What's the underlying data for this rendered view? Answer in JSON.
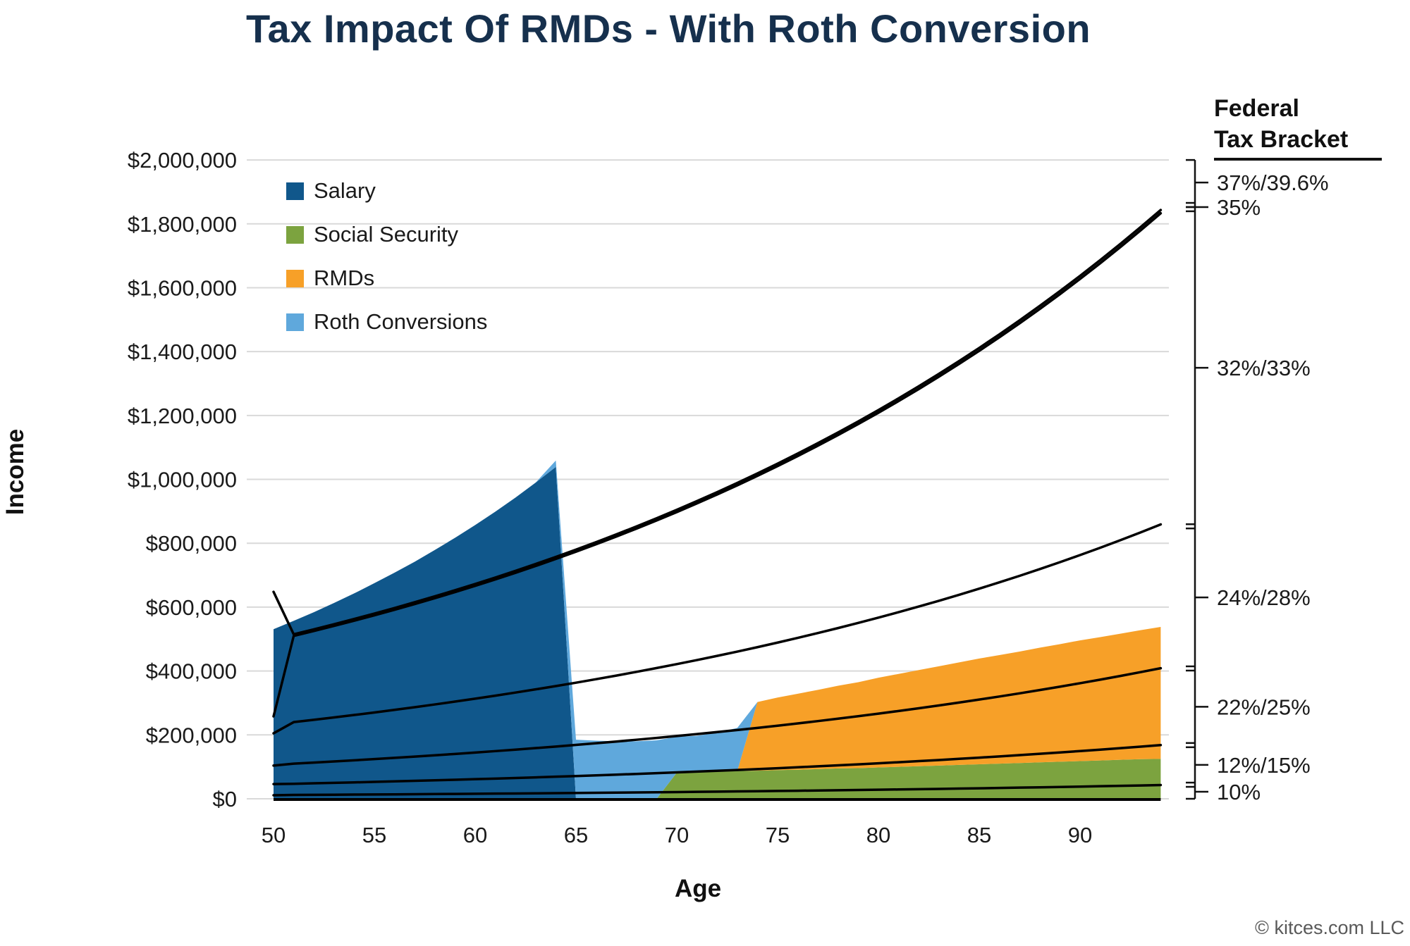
{
  "title": "Tax Impact Of RMDs - With Roth Conversion",
  "y_axis": {
    "label": "Income",
    "ticks": [
      "$0",
      "$200,000",
      "$400,000",
      "$600,000",
      "$800,000",
      "$1,000,000",
      "$1,200,000",
      "$1,400,000",
      "$1,600,000",
      "$1,800,000",
      "$2,000,000"
    ]
  },
  "x_axis": {
    "label": "Age",
    "ticks": [
      50,
      55,
      60,
      65,
      70,
      75,
      80,
      85,
      90
    ]
  },
  "legend": [
    {
      "label": "Salary",
      "color": "#10578B"
    },
    {
      "label": "Social Security",
      "color": "#7CA33F"
    },
    {
      "label": "RMDs",
      "color": "#F7A028"
    },
    {
      "label": "Roth Conversions",
      "color": "#5FA8DC"
    }
  ],
  "right_axis": {
    "header_line1": "Federal",
    "header_line2": "Tax Bracket",
    "labels": [
      "37%/39.6%",
      "35%",
      "32%/33%",
      "24%/28%",
      "22%/25%",
      "12%/15%",
      "10%"
    ],
    "bracket_boundaries_k": [
      2000,
      1859,
      1846,
      853,
      408,
      168,
      44,
      0
    ]
  },
  "copyright": "© kitces.com LLC",
  "chart_data": {
    "type": "area",
    "stacked": true,
    "title": "Tax Impact Of RMDs - With Roth Conversion",
    "xlabel": "Age",
    "ylabel": "Income",
    "x_range": [
      50,
      94.4
    ],
    "ylim_dollars": [
      0,
      2000000
    ],
    "grid": "horizontal",
    "legend_position": "top-left-inside",
    "ages": [
      50,
      51,
      52,
      53,
      54,
      55,
      56,
      57,
      58,
      59,
      60,
      61,
      62,
      63,
      64,
      65,
      66,
      67,
      68,
      69,
      70,
      71,
      72,
      73,
      74,
      75,
      76,
      77,
      78,
      79,
      80,
      81,
      82,
      83,
      84,
      85,
      86,
      87,
      88,
      89,
      90,
      91,
      92,
      93,
      94
    ],
    "series": [
      {
        "name": "Salary",
        "color": "#10578B",
        "values_k": [
          531,
          557,
          584,
          613,
          643,
          675,
          708,
          742,
          779,
          817,
          857,
          899,
          943,
          990,
          1039,
          0,
          0,
          0,
          0,
          0,
          0,
          0,
          0,
          0,
          0,
          0,
          0,
          0,
          0,
          0,
          0,
          0,
          0,
          0,
          0,
          0,
          0,
          0,
          0,
          0,
          0,
          0,
          0,
          0,
          0
        ]
      },
      {
        "name": "Social Security",
        "color": "#7CA33F",
        "values_k": [
          0,
          0,
          0,
          0,
          0,
          0,
          0,
          0,
          0,
          0,
          0,
          0,
          0,
          0,
          0,
          0,
          0,
          0,
          0,
          0,
          82,
          84,
          85,
          87,
          88,
          90,
          91,
          93,
          95,
          96,
          98,
          100,
          102,
          104,
          106,
          108,
          110,
          112,
          114,
          116,
          118,
          120,
          122,
          124,
          125
        ]
      },
      {
        "name": "RMDs",
        "color": "#F7A028",
        "values_k": [
          0,
          0,
          0,
          0,
          0,
          0,
          0,
          0,
          0,
          0,
          0,
          0,
          0,
          0,
          0,
          0,
          0,
          0,
          0,
          0,
          0,
          0,
          0,
          0,
          215,
          227,
          238,
          248,
          259,
          269,
          281,
          291,
          301,
          311,
          321,
          331,
          340,
          349,
          359,
          368,
          378,
          386,
          395,
          404,
          413
        ]
      },
      {
        "name": "Roth Conversions",
        "color": "#5FA8DC",
        "values_k": [
          0,
          0,
          0,
          0,
          0,
          0,
          0,
          0,
          0,
          0,
          0,
          0,
          0,
          0,
          20,
          185,
          182,
          180,
          180,
          183,
          112,
          113,
          122,
          135,
          0,
          0,
          0,
          0,
          0,
          0,
          0,
          0,
          0,
          0,
          0,
          0,
          0,
          0,
          0,
          0,
          0,
          0,
          0,
          0,
          0
        ]
      }
    ],
    "threshold_lines": [
      {
        "name": "35% to 37%/39.6% bracket threshold",
        "points_k": [
          [
            50,
            648
          ],
          [
            51,
            515
          ]
        ],
        "annual_growth": 1.0301
      },
      {
        "name": "32%/33% to 35% bracket threshold",
        "points_k": [
          [
            50,
            258
          ],
          [
            51,
            510
          ]
        ],
        "annual_growth": 1.0302
      },
      {
        "name": "24%/28% to 32%/33% bracket threshold",
        "points_k": [
          [
            50,
            205
          ],
          [
            51,
            240
          ]
        ],
        "annual_growth": 1.0301
      },
      {
        "name": "22%/25% to 24%/28% bracket threshold",
        "points_k": [
          [
            50,
            104
          ],
          [
            51,
            110
          ]
        ],
        "annual_growth": 1.031
      },
      {
        "name": "12%/15% to 22%/25% bracket threshold",
        "points_k": [
          [
            50,
            46
          ],
          [
            51,
            47
          ]
        ],
        "annual_growth": 1.0301
      },
      {
        "name": "10% to 12%/15% bracket threshold",
        "points_k": [
          [
            50,
            11
          ],
          [
            51,
            12
          ]
        ],
        "annual_growth": 1.0301
      }
    ]
  }
}
